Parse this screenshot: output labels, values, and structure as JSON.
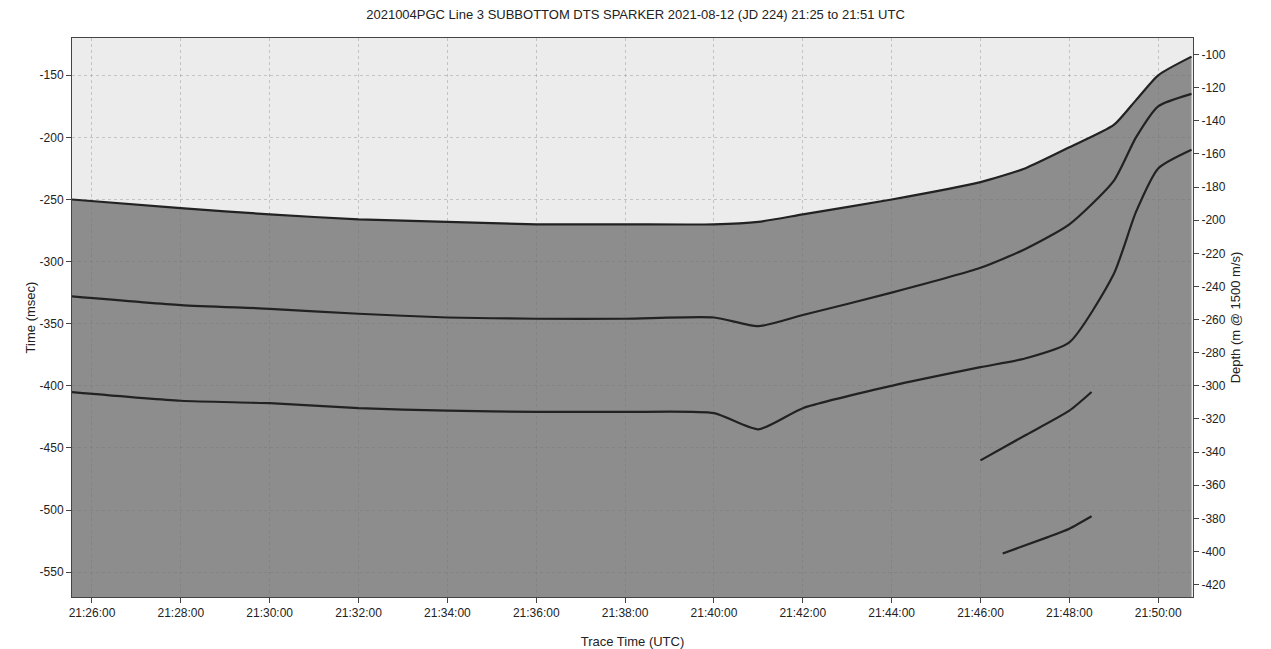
{
  "chart_data": {
    "type": "line",
    "title": "2021004PGC Line 3 SUBBOTTOM DTS SPARKER 2021-08-12 (JD 224) 21:25 to 21:51 UTC",
    "x_label": "Trace Time (UTC)",
    "y_label": "Time (msec)",
    "y2_label": "Depth (m @ 1500 m/s)",
    "xlim": [
      "21:25:33",
      "21:50:47"
    ],
    "xticks": [
      "21:26:00",
      "21:28:00",
      "21:30:00",
      "21:32:00",
      "21:34:00",
      "21:36:00",
      "21:38:00",
      "21:40:00",
      "21:42:00",
      "21:44:00",
      "21:46:00",
      "21:48:00",
      "21:50:00"
    ],
    "ylim": [
      -570,
      -120
    ],
    "yticks": [
      -550,
      -500,
      -450,
      -400,
      -350,
      -300,
      -250,
      -200,
      -150
    ],
    "y2lim": [
      -427.5,
      -90
    ],
    "y2ticks": [
      -420,
      -400,
      -380,
      -360,
      -340,
      -320,
      -300,
      -280,
      -260,
      -240,
      -220,
      -200,
      -180,
      -160,
      -140,
      -120,
      -100
    ],
    "grid": true,
    "series": [
      {
        "color": "#222222",
        "x": [
          "21:25:33",
          "21:28:00",
          "21:30:00",
          "21:32:00",
          "21:34:00",
          "21:36:00",
          "21:38:00",
          "21:40:00",
          "21:41:00",
          "21:42:00",
          "21:44:00",
          "21:46:00",
          "21:47:00",
          "21:48:00",
          "21:49:00",
          "21:49:30",
          "21:50:00",
          "21:50:45"
        ],
        "values": [
          -250,
          -257,
          -262,
          -266,
          -268,
          -270,
          -270,
          -270,
          -268,
          -262,
          -250,
          -236,
          -225,
          -208,
          -190,
          -170,
          -150,
          -135
        ]
      },
      {
        "color": "#222222",
        "x": [
          "21:25:33",
          "21:28:00",
          "21:30:00",
          "21:32:00",
          "21:34:00",
          "21:36:00",
          "21:38:00",
          "21:40:00",
          "21:41:00",
          "21:42:00",
          "21:44:00",
          "21:46:00",
          "21:47:00",
          "21:48:00",
          "21:49:00",
          "21:49:30",
          "21:50:00",
          "21:50:45"
        ],
        "values": [
          -328,
          -335,
          -338,
          -342,
          -345,
          -346,
          -346,
          -345,
          -352,
          -343,
          -325,
          -305,
          -290,
          -270,
          -235,
          -200,
          -175,
          -165
        ]
      },
      {
        "color": "#222222",
        "x": [
          "21:25:33",
          "21:28:00",
          "21:30:00",
          "21:32:00",
          "21:34:00",
          "21:36:00",
          "21:38:00",
          "21:40:00",
          "21:41:00",
          "21:42:00",
          "21:44:00",
          "21:46:00",
          "21:47:00",
          "21:48:00",
          "21:49:00",
          "21:49:30",
          "21:50:00",
          "21:50:45"
        ],
        "values": [
          -405,
          -412,
          -414,
          -418,
          -420,
          -421,
          -421,
          -422,
          -435,
          -418,
          -400,
          -385,
          -378,
          -365,
          -310,
          -260,
          -225,
          -210
        ]
      },
      {
        "color": "#222222",
        "x": [
          "21:46:00",
          "21:47:00",
          "21:48:00",
          "21:48:30"
        ],
        "values": [
          -460,
          -440,
          -420,
          -405
        ]
      },
      {
        "color": "#222222",
        "x": [
          "21:46:30",
          "21:47:30",
          "21:48:00",
          "21:48:30"
        ],
        "values": [
          -535,
          -522,
          -515,
          -505
        ]
      }
    ]
  }
}
